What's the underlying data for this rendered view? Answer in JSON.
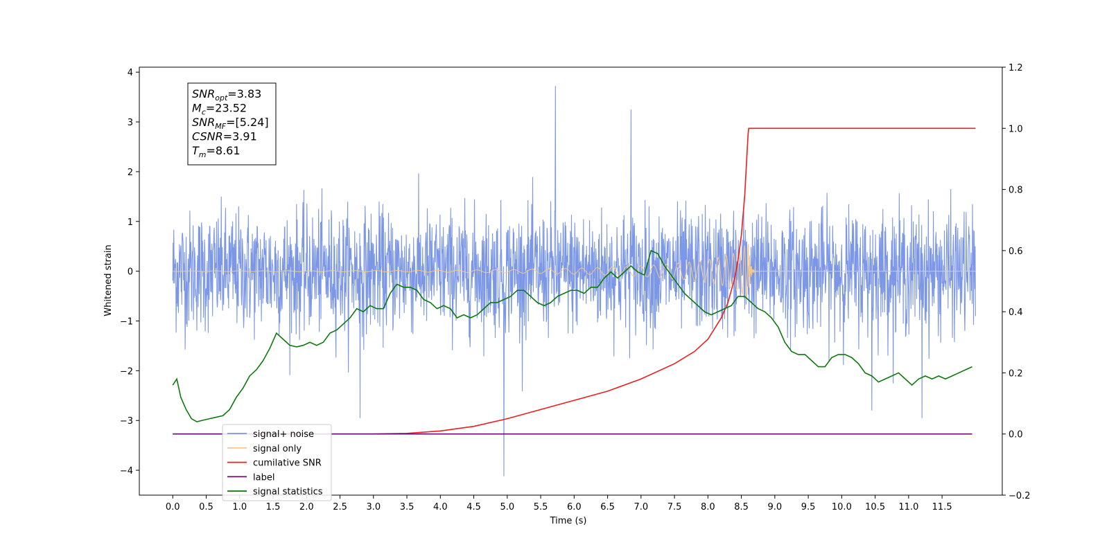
{
  "chart_data": {
    "type": "line",
    "title": "",
    "xlabel": "Time (s)",
    "ylabel_left": "Whitened strain",
    "ylabel_right": "",
    "xlim": [
      -0.5,
      12.4
    ],
    "ylim_left": [
      -4.5,
      4.1
    ],
    "ylim_right": [
      -0.2,
      1.2
    ],
    "x_ticks": [
      0.0,
      0.5,
      1.0,
      1.5,
      2.0,
      2.5,
      3.0,
      3.5,
      4.0,
      4.5,
      5.0,
      5.5,
      6.0,
      6.5,
      7.0,
      7.5,
      8.0,
      8.5,
      9.0,
      9.5,
      10.0,
      10.5,
      11.0,
      11.5
    ],
    "x_tick_labels": [
      "0.0",
      "0.5",
      "1.0",
      "1.5",
      "2.0",
      "2.5",
      "3.0",
      "3.5",
      "4.0",
      "4.5",
      "5.0",
      "5.5",
      "6.0",
      "6.5",
      "7.0",
      "7.5",
      "8.0",
      "8.5",
      "9.0",
      "9.5",
      "10.0",
      "10.5",
      "11.0",
      "11.5"
    ],
    "y_left_ticks": [
      -4,
      -3,
      -2,
      -1,
      0,
      1,
      2,
      3,
      4
    ],
    "y_left_tick_labels": [
      "−4",
      "−3",
      "−2",
      "−1",
      "0",
      "1",
      "2",
      "3",
      "4"
    ],
    "y_right_ticks": [
      -0.2,
      0.0,
      0.2,
      0.4,
      0.6,
      0.8,
      1.0,
      1.2
    ],
    "y_right_tick_labels": [
      "−0.2",
      "0.0",
      "0.2",
      "0.4",
      "0.6",
      "0.8",
      "1.0",
      "1.2"
    ],
    "grid": false,
    "legend_placement": "lower-left",
    "annotation_lines": [
      {
        "sym": "SNR",
        "sub": "opt",
        "rest": "=3.83"
      },
      {
        "sym": "M",
        "sub": "c",
        "rest": "=23.52"
      },
      {
        "sym": "SNR",
        "sub": "MF",
        "rest": "=[5.24]"
      },
      {
        "sym": "CSNR",
        "sub": "",
        "rest": "=3.91"
      },
      {
        "sym": "T",
        "sub": "m",
        "rest": "=8.61"
      }
    ],
    "noise_model": {
      "description": "dense whitened noise, mean 0, typical envelope ±1.4 with spikes",
      "x_range": [
        0.0,
        12.0
      ],
      "notable_spikes": [
        {
          "x": 5.72,
          "y": 3.72
        },
        {
          "x": 4.95,
          "y": -4.12
        },
        {
          "x": 6.85,
          "y": 3.25
        },
        {
          "x": 2.8,
          "y": -2.95
        },
        {
          "x": 11.2,
          "y": -2.95
        },
        {
          "x": 10.45,
          "y": -2.8
        }
      ]
    },
    "series": [
      {
        "name": "signal+ noise",
        "axis": "left",
        "color": "#7b97e6",
        "kind": "noise"
      },
      {
        "name": "signal only",
        "axis": "left",
        "color": "#f5c78a",
        "kind": "chirp",
        "chirp": {
          "t_merge": 8.61,
          "start_amp": 0.005,
          "peak_amp": 0.55,
          "x_start": 0.0,
          "x_end": 12.0
        }
      },
      {
        "name": "cumilative SNR",
        "axis": "right",
        "color": "#ee1c1c",
        "x": [
          0.0,
          3.0,
          3.5,
          4.0,
          4.5,
          5.0,
          5.5,
          6.0,
          6.5,
          7.0,
          7.5,
          7.8,
          8.0,
          8.2,
          8.3,
          8.4,
          8.45,
          8.5,
          8.55,
          8.58,
          8.6,
          8.61,
          12.0
        ],
        "y": [
          0.0,
          0.0,
          0.002,
          0.01,
          0.025,
          0.05,
          0.08,
          0.11,
          0.14,
          0.18,
          0.23,
          0.27,
          0.31,
          0.38,
          0.43,
          0.51,
          0.57,
          0.65,
          0.78,
          0.9,
          0.98,
          1.0,
          1.0
        ]
      },
      {
        "name": "label",
        "axis": "right",
        "color": "#6a0d6a",
        "x": [
          0.0,
          11.95
        ],
        "y": [
          0.0,
          0.0
        ]
      },
      {
        "name": "signal statistics",
        "axis": "right",
        "color": "#0a7a0a",
        "x": [
          0.0,
          0.06,
          0.12,
          0.2,
          0.28,
          0.36,
          0.45,
          0.55,
          0.65,
          0.75,
          0.85,
          0.95,
          1.05,
          1.15,
          1.25,
          1.35,
          1.45,
          1.55,
          1.65,
          1.75,
          1.85,
          1.95,
          2.05,
          2.15,
          2.25,
          2.35,
          2.45,
          2.55,
          2.65,
          2.75,
          2.85,
          2.95,
          3.05,
          3.15,
          3.25,
          3.35,
          3.45,
          3.55,
          3.65,
          3.75,
          3.85,
          3.95,
          4.05,
          4.15,
          4.25,
          4.35,
          4.45,
          4.55,
          4.65,
          4.75,
          4.85,
          4.95,
          5.05,
          5.15,
          5.25,
          5.35,
          5.45,
          5.55,
          5.65,
          5.75,
          5.85,
          5.95,
          6.05,
          6.15,
          6.25,
          6.35,
          6.45,
          6.55,
          6.65,
          6.75,
          6.85,
          6.95,
          7.05,
          7.15,
          7.25,
          7.35,
          7.45,
          7.55,
          7.65,
          7.75,
          7.85,
          7.95,
          8.05,
          8.15,
          8.25,
          8.35,
          8.45,
          8.55,
          8.65,
          8.75,
          8.85,
          8.95,
          9.05,
          9.15,
          9.25,
          9.35,
          9.45,
          9.55,
          9.65,
          9.75,
          9.85,
          9.95,
          10.05,
          10.15,
          10.25,
          10.35,
          10.45,
          10.55,
          10.65,
          10.75,
          10.85,
          10.95,
          11.05,
          11.15,
          11.25,
          11.35,
          11.45,
          11.55,
          11.65,
          11.75,
          11.85,
          11.95
        ],
        "y": [
          0.16,
          0.18,
          0.12,
          0.08,
          0.05,
          0.04,
          0.045,
          0.05,
          0.055,
          0.06,
          0.08,
          0.12,
          0.15,
          0.19,
          0.21,
          0.24,
          0.28,
          0.33,
          0.31,
          0.29,
          0.285,
          0.29,
          0.3,
          0.29,
          0.3,
          0.33,
          0.34,
          0.36,
          0.38,
          0.41,
          0.4,
          0.42,
          0.41,
          0.41,
          0.46,
          0.49,
          0.48,
          0.48,
          0.47,
          0.44,
          0.43,
          0.41,
          0.42,
          0.41,
          0.38,
          0.39,
          0.38,
          0.39,
          0.41,
          0.43,
          0.43,
          0.44,
          0.45,
          0.47,
          0.47,
          0.45,
          0.43,
          0.42,
          0.43,
          0.45,
          0.46,
          0.47,
          0.47,
          0.46,
          0.48,
          0.48,
          0.51,
          0.53,
          0.51,
          0.53,
          0.55,
          0.53,
          0.52,
          0.6,
          0.59,
          0.55,
          0.52,
          0.49,
          0.46,
          0.44,
          0.42,
          0.4,
          0.39,
          0.4,
          0.41,
          0.42,
          0.45,
          0.45,
          0.43,
          0.41,
          0.4,
          0.38,
          0.35,
          0.3,
          0.27,
          0.26,
          0.26,
          0.24,
          0.22,
          0.22,
          0.25,
          0.26,
          0.26,
          0.25,
          0.23,
          0.2,
          0.19,
          0.17,
          0.18,
          0.19,
          0.2,
          0.18,
          0.16,
          0.18,
          0.19,
          0.18,
          0.19,
          0.18,
          0.19,
          0.2,
          0.21,
          0.22
        ]
      }
    ]
  }
}
